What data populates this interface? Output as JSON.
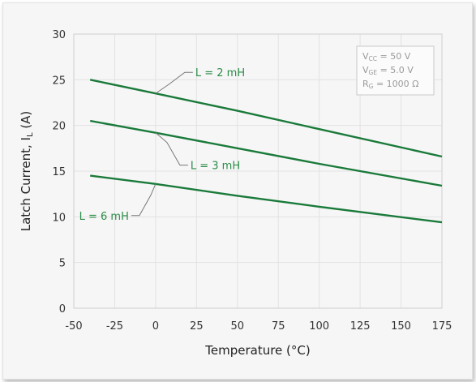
{
  "chart_data": {
    "type": "line",
    "title": "",
    "xlabel": "Temperature (°C)",
    "ylabel_main": "Latch Current, I",
    "ylabel_sub": "L",
    "ylabel_unit": " (A)",
    "xlim": [
      -50,
      175
    ],
    "ylim": [
      0,
      30
    ],
    "xticks": [
      -50,
      -25,
      0,
      25,
      50,
      75,
      100,
      125,
      150,
      175
    ],
    "yticks": [
      0,
      5,
      10,
      15,
      20,
      25,
      30
    ],
    "grid": true,
    "line_color": "#1a7a3a",
    "label_color": "#2a8c47",
    "series": [
      {
        "name": "L = 2 mH",
        "x": [
          -40,
          0,
          50,
          100,
          175
        ],
        "y": [
          25.0,
          23.5,
          21.6,
          19.6,
          16.6
        ]
      },
      {
        "name": "L = 3 mH",
        "x": [
          -40,
          0,
          50,
          100,
          175
        ],
        "y": [
          20.5,
          19.2,
          17.5,
          15.8,
          13.4
        ]
      },
      {
        "name": "L = 6 mH",
        "x": [
          -40,
          0,
          50,
          100,
          175
        ],
        "y": [
          14.5,
          13.6,
          12.3,
          11.1,
          9.4
        ]
      }
    ],
    "conditions": [
      {
        "main": "V",
        "sub": "CC",
        "rest": " = 50 V"
      },
      {
        "main": "V",
        "sub": "GE",
        "rest": " = 5.0 V"
      },
      {
        "main": "R",
        "sub": "G",
        "rest": " = 1000 Ω"
      }
    ]
  }
}
